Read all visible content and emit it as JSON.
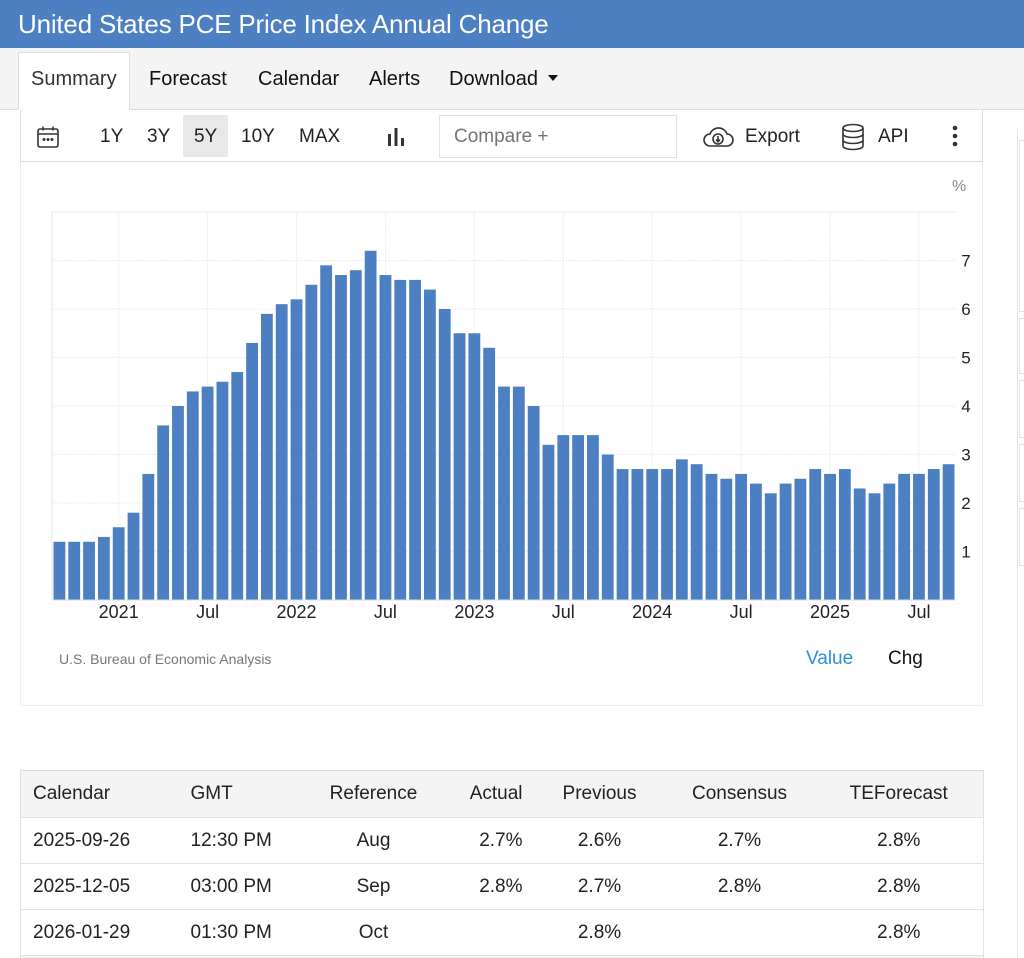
{
  "header": {
    "title": "United States PCE Price Index Annual Change"
  },
  "tabs": [
    {
      "label": "Summary",
      "active": true
    },
    {
      "label": "Forecast"
    },
    {
      "label": "Calendar"
    },
    {
      "label": "Alerts"
    },
    {
      "label": "Download",
      "has_dropdown": true
    }
  ],
  "toolbar": {
    "calendar_icon": "calendar-icon",
    "ranges": [
      "1Y",
      "3Y",
      "5Y",
      "10Y",
      "MAX"
    ],
    "selected_range": "5Y",
    "chart_type_icon": "bar-chart-icon",
    "compare_placeholder": "Compare +",
    "export_label": "Export",
    "export_icon": "cloud-download-icon",
    "api_label": "API",
    "api_icon": "database-icon",
    "more_icon": "vertical-ellipsis-icon"
  },
  "chart_footer": {
    "source": "U.S. Bureau of Economic Analysis",
    "value_toggle": "Value",
    "chg_toggle": "Chg",
    "active_toggle": "Value"
  },
  "colors": {
    "header": "#4d80c2",
    "bar": "#4d80c2",
    "active_toggle": "#2d8fd5"
  },
  "chart_data": {
    "type": "bar",
    "title": "United States PCE Price Index Annual Change",
    "unit": "%",
    "xlabel": "",
    "ylabel": "%",
    "ylim": [
      0,
      8
    ],
    "yticks": [
      1,
      2,
      3,
      4,
      5,
      6,
      7
    ],
    "y_axis_side": "right",
    "grid": true,
    "x_tick_labels": [
      {
        "label": "2021",
        "index": 4
      },
      {
        "label": "Jul",
        "index": 10
      },
      {
        "label": "2022",
        "index": 16
      },
      {
        "label": "Jul",
        "index": 22
      },
      {
        "label": "2023",
        "index": 28
      },
      {
        "label": "Jul",
        "index": 34
      },
      {
        "label": "2024",
        "index": 40
      },
      {
        "label": "Jul",
        "index": 46
      },
      {
        "label": "2025",
        "index": 52
      },
      {
        "label": "Jul",
        "index": 58
      }
    ],
    "categories": [
      "2020-09",
      "2020-10",
      "2020-11",
      "2020-12",
      "2021-01",
      "2021-02",
      "2021-03",
      "2021-04",
      "2021-05",
      "2021-06",
      "2021-07",
      "2021-08",
      "2021-09",
      "2021-10",
      "2021-11",
      "2021-12",
      "2022-01",
      "2022-02",
      "2022-03",
      "2022-04",
      "2022-05",
      "2022-06",
      "2022-07",
      "2022-08",
      "2022-09",
      "2022-10",
      "2022-11",
      "2022-12",
      "2023-01",
      "2023-02",
      "2023-03",
      "2023-04",
      "2023-05",
      "2023-06",
      "2023-07",
      "2023-08",
      "2023-09",
      "2023-10",
      "2023-11",
      "2023-12",
      "2024-01",
      "2024-02",
      "2024-03",
      "2024-04",
      "2024-05",
      "2024-06",
      "2024-07",
      "2024-08",
      "2024-09",
      "2024-10",
      "2024-11",
      "2024-12",
      "2025-01",
      "2025-02",
      "2025-03",
      "2025-04",
      "2025-05",
      "2025-06",
      "2025-07",
      "2025-08",
      "2025-09"
    ],
    "values": [
      1.2,
      1.2,
      1.2,
      1.3,
      1.5,
      1.8,
      2.6,
      3.6,
      4.0,
      4.3,
      4.4,
      4.5,
      4.7,
      5.3,
      5.9,
      6.1,
      6.2,
      6.5,
      6.9,
      6.7,
      6.8,
      7.2,
      6.7,
      6.6,
      6.6,
      6.4,
      6.0,
      5.5,
      5.5,
      5.2,
      4.4,
      4.4,
      4.0,
      3.2,
      3.4,
      3.4,
      3.4,
      3.0,
      2.7,
      2.7,
      2.7,
      2.7,
      2.9,
      2.8,
      2.6,
      2.5,
      2.6,
      2.4,
      2.2,
      2.4,
      2.5,
      2.7,
      2.6,
      2.7,
      2.3,
      2.2,
      2.4,
      2.6,
      2.6,
      2.7,
      2.8
    ]
  },
  "calendar_table": {
    "columns": [
      "Calendar",
      "GMT",
      "Reference",
      "Actual",
      "Previous",
      "Consensus",
      "TEForecast"
    ],
    "rows": [
      [
        "2025-09-26",
        "12:30 PM",
        "Aug",
        "2.7%",
        "2.6%",
        "2.7%",
        "2.8%"
      ],
      [
        "2025-12-05",
        "03:00 PM",
        "Sep",
        "2.8%",
        "2.7%",
        "2.8%",
        "2.8%"
      ],
      [
        "2026-01-29",
        "01:30 PM",
        "Oct",
        "",
        "2.8%",
        "",
        "2.8%"
      ]
    ]
  }
}
